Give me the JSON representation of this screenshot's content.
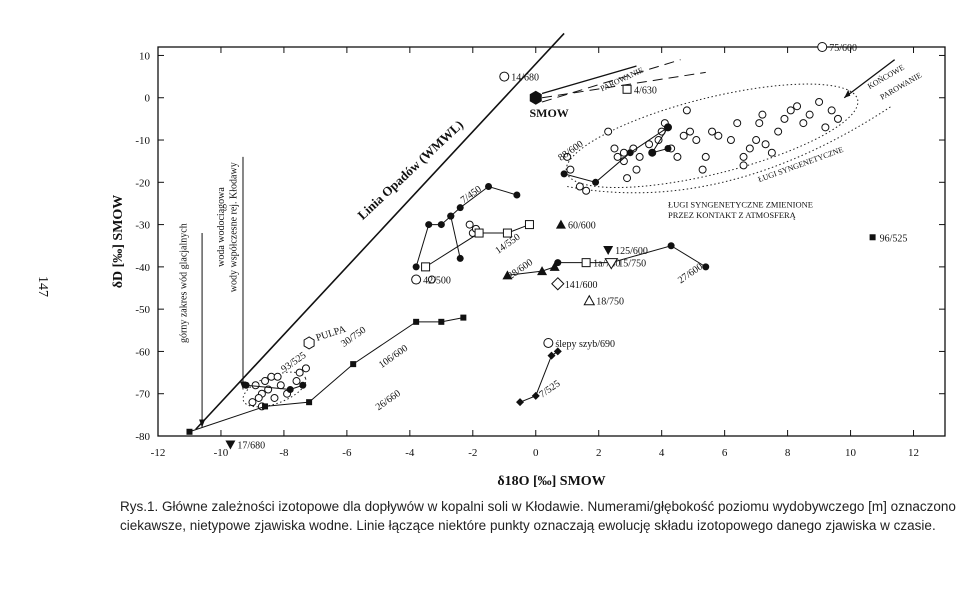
{
  "page_number": "147",
  "caption": {
    "line1": "Rys.1. Główne zależności izotopowe dla dopływów w kopalni soli w Kłodawie. Numerami/głębokość poziomu wydobywczego [m] oznaczono",
    "line2": "ciekawsze, nietypowe zjawiska wodne. Linie łączące niektóre punkty oznaczają ewolucję składu izotopowego danego zjawiska w czasie."
  },
  "chart_data": {
    "type": "scatter",
    "xlabel": "δ18O [‰] SMOW",
    "ylabel": "δD [‰] SMOW",
    "xlim": [
      -12,
      13
    ],
    "ylim": [
      -80,
      12
    ],
    "xticks": [
      -12,
      -10,
      -8,
      -6,
      -4,
      -2,
      0,
      2,
      4,
      6,
      8,
      10,
      12
    ],
    "yticks": [
      10,
      0,
      -10,
      -20,
      -30,
      -40,
      -50,
      -60,
      -70,
      -80
    ],
    "gmwl_label": "Linia Opadów (WMWL)",
    "gmwl": [
      [
        -10.8,
        -78.4
      ],
      [
        0.9,
        15.2
      ]
    ],
    "smow": {
      "label": "SMOW",
      "x": 0,
      "y": 0
    },
    "pulpa": {
      "label": "PULPA",
      "x": -7.2,
      "y": -58
    },
    "open_circles": [
      [
        -8.9,
        -68
      ],
      [
        -8.7,
        -70
      ],
      [
        -8.5,
        -69
      ],
      [
        -8.8,
        -71
      ],
      [
        -9.0,
        -72
      ],
      [
        -8.6,
        -67
      ],
      [
        -8.4,
        -66
      ],
      [
        -8.2,
        -66
      ],
      [
        -8.1,
        -68
      ],
      [
        -7.9,
        -70
      ],
      [
        -7.6,
        -67
      ],
      [
        -7.5,
        -65
      ],
      [
        -7.3,
        -64
      ],
      [
        -8.3,
        -71
      ],
      [
        -8.7,
        -73
      ],
      [
        -3.3,
        -43
      ],
      [
        -2.1,
        -30
      ],
      [
        -2.0,
        -32
      ],
      [
        -1.9,
        -31
      ],
      [
        1.0,
        -14
      ],
      [
        1.1,
        -17
      ],
      [
        1.4,
        -21
      ],
      [
        1.6,
        -22
      ],
      [
        2.3,
        -8
      ],
      [
        2.5,
        -12
      ],
      [
        2.6,
        -14
      ],
      [
        2.8,
        -15
      ],
      [
        2.8,
        -13
      ],
      [
        3.1,
        -12
      ],
      [
        3.3,
        -14
      ],
      [
        3.6,
        -11
      ],
      [
        3.7,
        -13
      ],
      [
        3.9,
        -10
      ],
      [
        4.0,
        -8
      ],
      [
        4.1,
        -6
      ],
      [
        4.2,
        -7
      ],
      [
        4.3,
        -12
      ],
      [
        4.5,
        -14
      ],
      [
        4.7,
        -9
      ],
      [
        4.9,
        -8
      ],
      [
        5.1,
        -10
      ],
      [
        5.4,
        -14
      ],
      [
        5.6,
        -8
      ],
      [
        5.8,
        -9
      ],
      [
        6.2,
        -10
      ],
      [
        6.4,
        -6
      ],
      [
        6.6,
        -14
      ],
      [
        6.8,
        -12
      ],
      [
        7.0,
        -10
      ],
      [
        7.1,
        -6
      ],
      [
        7.3,
        -11
      ],
      [
        7.5,
        -13
      ],
      [
        7.7,
        -8
      ],
      [
        7.9,
        -5
      ],
      [
        8.1,
        -3
      ],
      [
        8.3,
        -2
      ],
      [
        8.5,
        -6
      ],
      [
        8.7,
        -4
      ],
      [
        9.0,
        -1
      ],
      [
        9.2,
        -7
      ],
      [
        9.4,
        -3
      ],
      [
        9.6,
        -5
      ],
      [
        6.6,
        -16
      ],
      [
        7.2,
        -4
      ],
      [
        4.8,
        -3
      ],
      [
        3.2,
        -17
      ],
      [
        2.9,
        -19
      ],
      [
        5.3,
        -17
      ]
    ],
    "series": [
      {
        "marker": "circle",
        "values": [
          [
            -3.8,
            -40
          ],
          [
            -3.4,
            -30
          ],
          [
            -3.0,
            -30
          ],
          [
            -2.7,
            -28
          ],
          [
            -2.4,
            -38
          ]
        ]
      },
      {
        "marker": "circle",
        "values": [
          [
            -2.7,
            -28
          ],
          [
            -2.4,
            -26
          ],
          [
            -1.5,
            -21
          ],
          [
            -0.6,
            -23
          ]
        ]
      },
      {
        "marker": "circle",
        "values": [
          [
            -9.2,
            -68
          ],
          [
            -7.8,
            -69
          ],
          [
            -7.4,
            -68
          ]
        ]
      },
      {
        "marker": "circle",
        "values": [
          [
            0.7,
            -39
          ],
          [
            2.4,
            -39
          ],
          [
            4.3,
            -35
          ],
          [
            5.4,
            -40
          ]
        ]
      },
      {
        "marker": "circle",
        "values": [
          [
            0.9,
            -18
          ],
          [
            1.9,
            -20
          ],
          [
            3.0,
            -13
          ],
          [
            4.2,
            -7
          ],
          [
            3.7,
            -13
          ],
          [
            4.2,
            -12
          ]
        ]
      },
      {
        "marker": "square_open",
        "values": [
          [
            -3.5,
            -40
          ],
          [
            -1.8,
            -32
          ],
          [
            -0.9,
            -32
          ],
          [
            -0.2,
            -30
          ]
        ]
      },
      {
        "marker": "square_filled",
        "values": [
          [
            -11.0,
            -79
          ],
          [
            -8.6,
            -73
          ],
          [
            -7.2,
            -72
          ],
          [
            -5.8,
            -63
          ],
          [
            -3.8,
            -53
          ],
          [
            -3.0,
            -53
          ],
          [
            -2.3,
            -52
          ]
        ]
      },
      {
        "marker": "diamond_filled",
        "values": [
          [
            -0.5,
            -72
          ],
          [
            0,
            -70.5
          ],
          [
            0.5,
            -61
          ],
          [
            0.7,
            -60
          ]
        ]
      },
      {
        "marker": "triangle_filled",
        "values": [
          [
            -0.9,
            -42
          ],
          [
            0.2,
            -41
          ],
          [
            0.6,
            -40
          ]
        ]
      }
    ],
    "points": [
      {
        "marker": "triangle_down",
        "x": -9.7,
        "y": -82,
        "label": "17/680"
      },
      {
        "marker": "triangle_up",
        "x": 0.8,
        "y": -30,
        "label": "60/600"
      },
      {
        "marker": "triangle_down",
        "x": 2.3,
        "y": -36,
        "label": "125/600"
      },
      {
        "marker": "square_open",
        "x": 1.6,
        "y": -39,
        "label": "1a/740"
      },
      {
        "marker": "diamond_open",
        "x": 0.7,
        "y": -44,
        "label": "141/600"
      },
      {
        "marker": "triangle_open",
        "x": 1.7,
        "y": -48,
        "label": "18/750"
      },
      {
        "marker": "triangle_open_down",
        "x": 2.4,
        "y": -39,
        "label": "15/750"
      },
      {
        "marker": "circle_open",
        "x": -3.8,
        "y": -43,
        "label": "42/500"
      },
      {
        "marker": "circle_open",
        "x": 0.4,
        "y": -58,
        "label": "ślepy szyb/690"
      },
      {
        "marker": "square_filled",
        "x": 10.7,
        "y": -33,
        "label": "96/525"
      },
      {
        "marker": "circle_open",
        "x": 9.1,
        "y": 12,
        "label": "75/600"
      },
      {
        "marker": "circle_open",
        "x": -1.0,
        "y": 5,
        "label": "14/680"
      },
      {
        "marker": "square_open",
        "x": 2.9,
        "y": 2,
        "label": "4/630"
      }
    ],
    "annotations": [
      {
        "text": "7/450",
        "x": -2.3,
        "y": -25
      },
      {
        "text": "14/550",
        "x": -1.2,
        "y": -37
      },
      {
        "text": "28/600",
        "x": -0.8,
        "y": -43
      },
      {
        "text": "88/600",
        "x": 0.8,
        "y": -15
      },
      {
        "text": "93/525",
        "x": -8.0,
        "y": -65
      },
      {
        "text": "30/750",
        "x": -6.1,
        "y": -59
      },
      {
        "text": "106/600",
        "x": -4.9,
        "y": -64
      },
      {
        "text": "26/660",
        "x": -5.0,
        "y": -74
      },
      {
        "text": "27/600",
        "x": 4.6,
        "y": -44
      },
      {
        "text": "7/525",
        "x": 0.2,
        "y": -71
      }
    ],
    "region_labels": {
      "lugi_changed_1": "ŁUGI SYNGENETYCZNE ZMIENIONE",
      "lugi_changed_2": "PRZEZ KONTAKT Z ATMOSFERĄ",
      "lugi_syn": "ŁUGI SYNGENETYCZNE",
      "parowanie": "PAROWANIE",
      "koncowe_parowanie_1": "KOŃCOWE",
      "koncowe_parowanie_2": "PAROWANIE",
      "glacial": "górny zakres wód glacjalnych",
      "woda_1": "woda wodociągowa",
      "woda_2": "wody współczesne rej. Kłodawy"
    }
  }
}
